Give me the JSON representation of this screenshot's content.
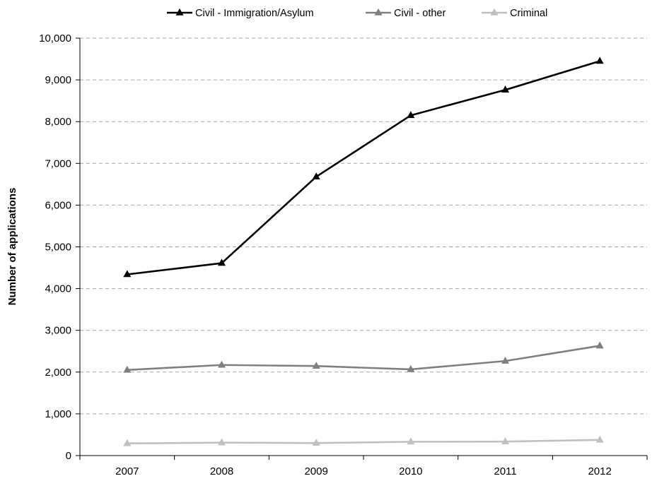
{
  "chart_data": {
    "type": "line",
    "title": "",
    "xlabel": "",
    "ylabel": "Number of applications",
    "categories": [
      "2007",
      "2008",
      "2009",
      "2010",
      "2011",
      "2012"
    ],
    "ylim": [
      0,
      10000
    ],
    "yticks": [
      0,
      1000,
      2000,
      3000,
      4000,
      5000,
      6000,
      7000,
      8000,
      9000,
      10000
    ],
    "ytick_labels": [
      "0",
      "1,000",
      "2,000",
      "3,000",
      "4,000",
      "5,000",
      "6,000",
      "7,000",
      "8,000",
      "9,000",
      "10,000"
    ],
    "grid": "horizontal dashed",
    "legend_position": "top",
    "marker": "triangle",
    "series": [
      {
        "name": "Civil - Immigration/Asylum",
        "color": "#000000",
        "values": [
          4340,
          4610,
          6680,
          8150,
          8760,
          9450
        ]
      },
      {
        "name": "Civil - other",
        "color": "#808080",
        "values": [
          2050,
          2170,
          2145,
          2065,
          2265,
          2630
        ]
      },
      {
        "name": "Criminal",
        "color": "#c0c0c0",
        "values": [
          290,
          310,
          300,
          330,
          335,
          375
        ]
      }
    ]
  }
}
